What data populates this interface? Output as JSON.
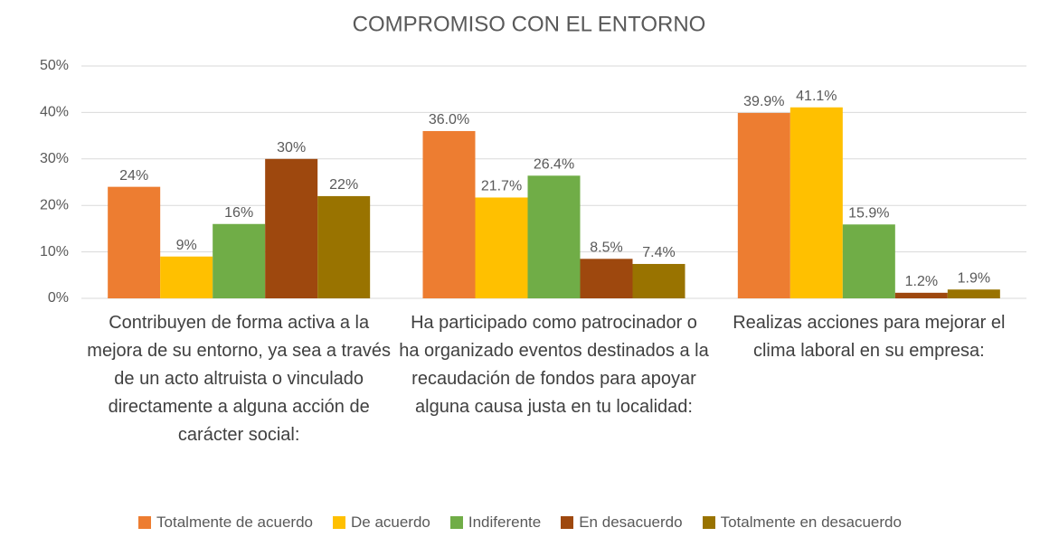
{
  "chart_data": {
    "type": "bar",
    "title": "COMPROMISO CON EL ENTORNO",
    "categories": [
      "Contribuyen de forma activa a la mejora de su entorno, ya sea a través de un acto altruista o vinculado directamente a alguna acción de carácter social:",
      "Ha participado como patrocinador o ha organizado eventos destinados a la recaudación de fondos para apoyar alguna causa justa en tu localidad:",
      "Realizas acciones para mejorar el clima laboral en su empresa:"
    ],
    "series": [
      {
        "name": "Totalmente de acuerdo",
        "color": "#ED7D31",
        "values": [
          24,
          36.0,
          39.9
        ],
        "value_labels": [
          "24%",
          "36.0%",
          "39.9%"
        ]
      },
      {
        "name": "De acuerdo",
        "color": "#FFC000",
        "values": [
          9,
          21.7,
          41.1
        ],
        "value_labels": [
          "9%",
          "21.7%",
          "41.1%"
        ]
      },
      {
        "name": "Indiferente",
        "color": "#70AD47",
        "values": [
          16,
          26.4,
          15.9
        ],
        "value_labels": [
          "16%",
          "26.4%",
          "15.9%"
        ]
      },
      {
        "name": "En desacuerdo",
        "color": "#9E480E",
        "values": [
          30,
          8.5,
          1.2
        ],
        "value_labels": [
          "30%",
          "8.5%",
          "1.2%"
        ]
      },
      {
        "name": "Totalmente en desacuerdo",
        "color": "#997300",
        "values": [
          22,
          7.4,
          1.9
        ],
        "value_labels": [
          "22%",
          "7.4%",
          "1.9%"
        ]
      }
    ],
    "ylim": [
      0,
      50
    ],
    "yticks": [
      {
        "value": 0,
        "label": "0%"
      },
      {
        "value": 10,
        "label": "10%"
      },
      {
        "value": 20,
        "label": "20%"
      },
      {
        "value": 30,
        "label": "30%"
      },
      {
        "value": 40,
        "label": "40%"
      },
      {
        "value": 50,
        "label": "50%"
      }
    ],
    "grid": true,
    "legend": "bottom"
  }
}
